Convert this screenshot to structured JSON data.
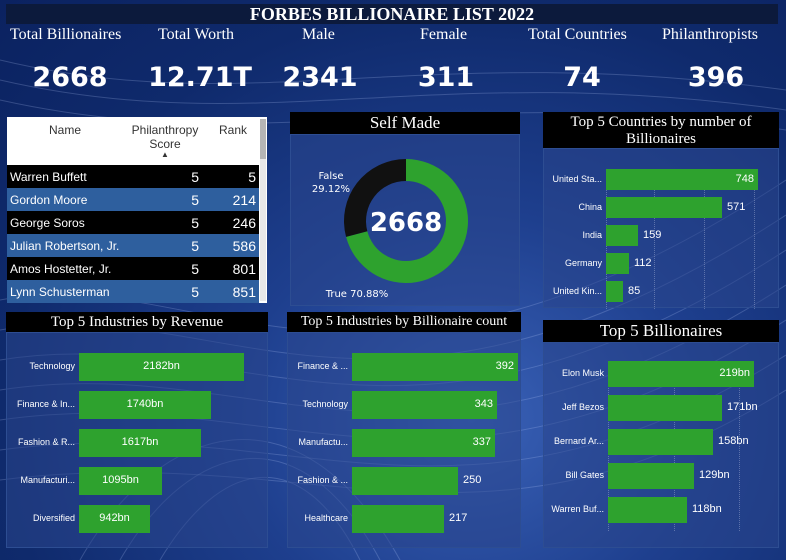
{
  "title": "FORBES BILLIONAIRE LIST 2022",
  "kpis": [
    {
      "label": "Total Billionaires",
      "value": "2668"
    },
    {
      "label": "Total Worth",
      "value": "12.71T"
    },
    {
      "label": "Male",
      "value": "2341"
    },
    {
      "label": "Female",
      "value": "311"
    },
    {
      "label": "Total Countries",
      "value": "74"
    },
    {
      "label": "Philanthropists",
      "value": "396"
    }
  ],
  "philanthropy_table": {
    "headers": {
      "name": "Name",
      "score_line1": "Philanthropy",
      "score_line2": "Score",
      "rank": "Rank"
    },
    "rows": [
      {
        "name": "Warren Buffett",
        "score": "5",
        "rank": "5"
      },
      {
        "name": "Gordon Moore",
        "score": "5",
        "rank": "214"
      },
      {
        "name": "George Soros",
        "score": "5",
        "rank": "246"
      },
      {
        "name": "Julian Robertson, Jr.",
        "score": "5",
        "rank": "586"
      },
      {
        "name": "Amos Hostetter, Jr.",
        "score": "5",
        "rank": "801"
      },
      {
        "name": "Lynn Schusterman",
        "score": "5",
        "rank": "851"
      }
    ]
  },
  "chart_data": [
    {
      "type": "pie",
      "title": "Self Made",
      "center_value": "2668",
      "categories": [
        "False",
        "True"
      ],
      "values": [
        29.12,
        70.88
      ],
      "labels": [
        "29.12%",
        "70.88%"
      ],
      "colors": {
        "False": "#111111",
        "True": "#2ea22e"
      }
    },
    {
      "type": "bar",
      "orientation": "horizontal",
      "title_line1": "Top 5 Countries by number of",
      "title_line2": "Billionaires",
      "categories": [
        "United Sta...",
        "China",
        "India",
        "Germany",
        "United Kin..."
      ],
      "values": [
        748,
        571,
        159,
        112,
        85
      ]
    },
    {
      "type": "bar",
      "orientation": "horizontal",
      "title": "Top 5 Industries by Revenue",
      "categories": [
        "Technology",
        "Finance & In...",
        "Fashion & R...",
        "Manufacturi...",
        "Diversified"
      ],
      "values": [
        2182,
        1740,
        1617,
        1095,
        942
      ],
      "value_labels": [
        "2182bn",
        "1740bn",
        "1617bn",
        "1095bn",
        "942bn"
      ]
    },
    {
      "type": "bar",
      "orientation": "horizontal",
      "title": "Top 5 Industries by Billionaire count",
      "categories": [
        "Finance & ...",
        "Technology",
        "Manufactu...",
        "Fashion & ...",
        "Healthcare"
      ],
      "values": [
        392,
        343,
        337,
        250,
        217
      ]
    },
    {
      "type": "bar",
      "orientation": "horizontal",
      "title": "Top 5 Billionaires",
      "categories": [
        "Elon Musk",
        "Jeff Bezos",
        "Bernard Ar...",
        "Bill Gates",
        "Warren Buf..."
      ],
      "values": [
        219,
        171,
        158,
        129,
        118
      ],
      "value_labels": [
        "219bn",
        "171bn",
        "158bn",
        "129bn",
        "118bn"
      ]
    }
  ],
  "colors": {
    "bar": "#2ea22e",
    "background": "#1e3f8e",
    "row_dark": "#000000",
    "row_light": "#2e5f9e"
  }
}
